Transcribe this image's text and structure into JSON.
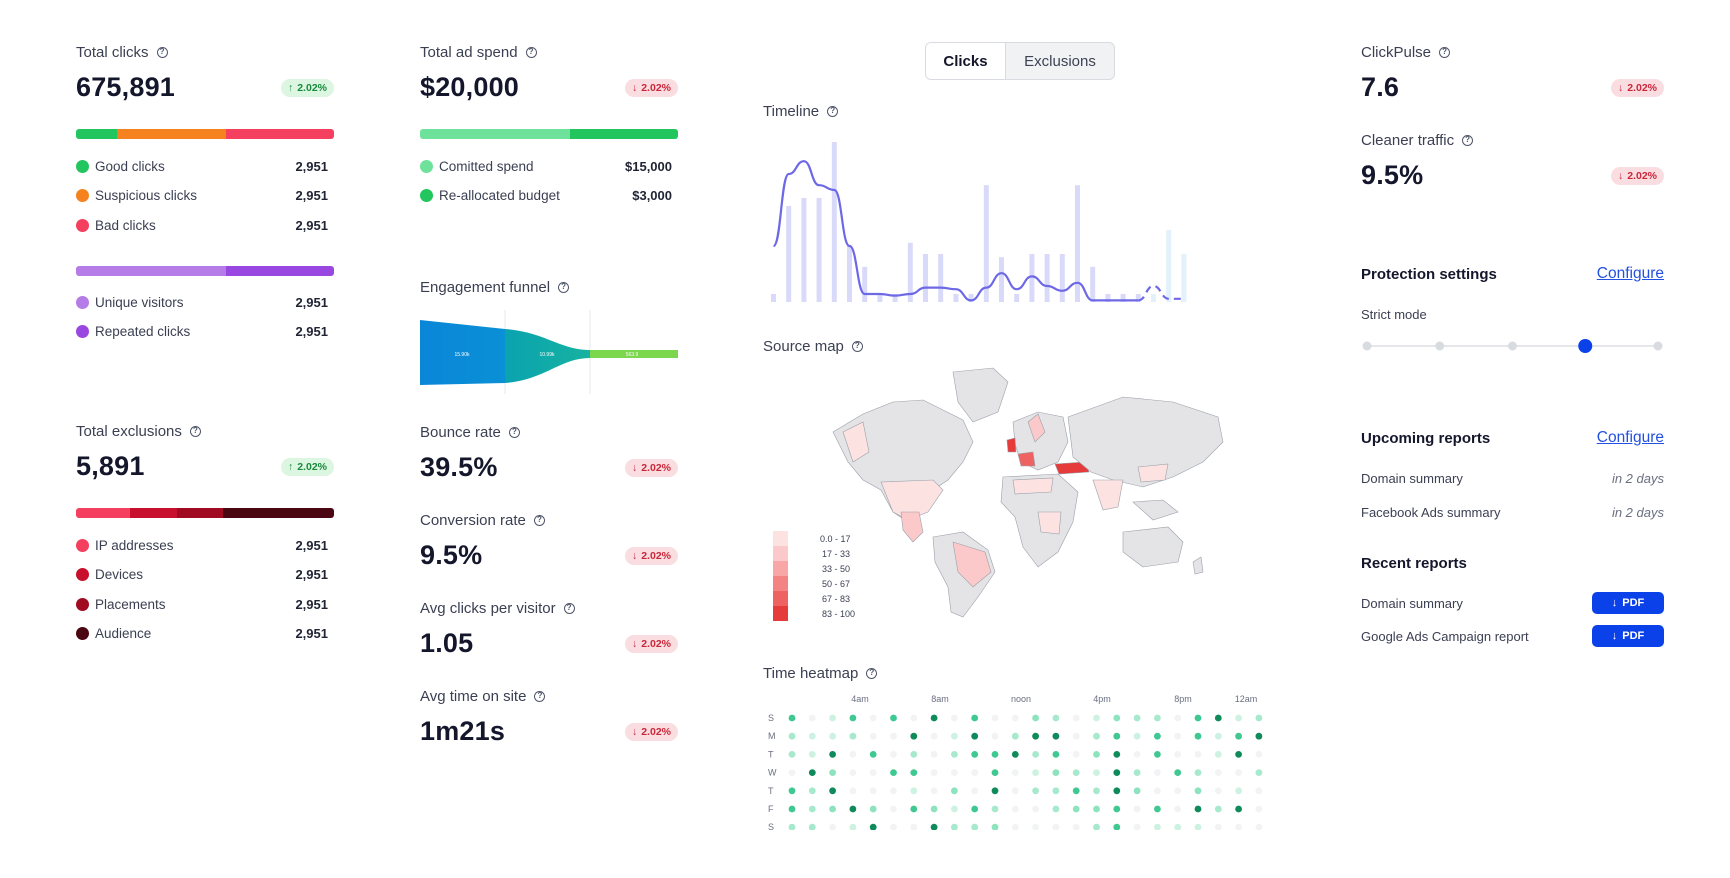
{
  "total_clicks": {
    "label": "Total clicks",
    "value": "675,891",
    "change": "2.02%",
    "direction": "up",
    "bar1": [
      {
        "color": "#22c55e",
        "frac": 0.16
      },
      {
        "color": "#f5821f",
        "frac": 0.42
      },
      {
        "color": "#f43f5e",
        "frac": 0.42
      }
    ],
    "items1": [
      {
        "label": "Good clicks",
        "value": "2,951",
        "color": "#22c55e"
      },
      {
        "label": "Suspicious clicks",
        "value": "2,951",
        "color": "#f5821f"
      },
      {
        "label": "Bad clicks",
        "value": "2,951",
        "color": "#f43f5e"
      }
    ],
    "bar2": [
      {
        "color": "#b57ce8",
        "frac": 0.58
      },
      {
        "color": "#9848e0",
        "frac": 0.42
      }
    ],
    "items2": [
      {
        "label": "Unique visitors",
        "value": "2,951",
        "color": "#b57ce8"
      },
      {
        "label": "Repeated clicks",
        "value": "2,951",
        "color": "#9848e0"
      }
    ]
  },
  "total_exclusions": {
    "label": "Total exclusions",
    "value": "5,891",
    "change": "2.02%",
    "direction": "up",
    "bar": [
      {
        "color": "#f43f5e",
        "frac": 0.21
      },
      {
        "color": "#c8102e",
        "frac": 0.18
      },
      {
        "color": "#a00b22",
        "frac": 0.18
      },
      {
        "color": "#4a0712",
        "frac": 0.43
      }
    ],
    "items": [
      {
        "label": "IP addresses",
        "value": "2,951",
        "color": "#f43f5e"
      },
      {
        "label": "Devices",
        "value": "2,951",
        "color": "#c8102e"
      },
      {
        "label": "Placements",
        "value": "2,951",
        "color": "#a00b22"
      },
      {
        "label": "Audience",
        "value": "2,951",
        "color": "#4a0712"
      }
    ]
  },
  "ad_spend": {
    "label": "Total ad spend",
    "value": "$20,000",
    "change": "2.02%",
    "direction": "down",
    "bar": [
      {
        "color": "#6ee29a",
        "frac": 0.58
      },
      {
        "color": "#22c55e",
        "frac": 0.42
      }
    ],
    "items": [
      {
        "label": "Comitted spend",
        "value": "$15,000",
        "color": "#6ee29a"
      },
      {
        "label": "Re-allocated budget",
        "value": "$3,000",
        "color": "#22c55e"
      }
    ]
  },
  "funnel": {
    "label": "Engagement funnel",
    "stages": [
      "15.90k",
      "10.99k",
      "563.9"
    ]
  },
  "metrics": [
    {
      "label": "Bounce rate",
      "value": "39.5%",
      "change": "2.02%"
    },
    {
      "label": "Conversion rate",
      "value": "9.5%",
      "change": "2.02%"
    },
    {
      "label": "Avg clicks per visitor",
      "value": "1.05",
      "change": "2.02%"
    },
    {
      "label": "Avg time on site",
      "value": "1m21s",
      "change": "2.02%"
    }
  ],
  "tabs": {
    "active": "Clicks",
    "other": "Exclusions"
  },
  "timeline": {
    "label": "Timeline",
    "bars": [
      5,
      60,
      65,
      65,
      100,
      35,
      22,
      5,
      5,
      37,
      30,
      30,
      5,
      5,
      73,
      28,
      5,
      30,
      30,
      30,
      73,
      22,
      5,
      5,
      5,
      5,
      45,
      30
    ],
    "line": [
      35,
      80,
      88,
      73,
      70,
      35,
      5,
      5,
      4,
      5,
      9,
      9,
      8,
      1,
      9,
      18,
      8,
      16,
      10,
      7,
      12,
      1,
      1,
      1,
      1,
      10,
      2,
      2
    ]
  },
  "map": {
    "label": "Source map",
    "legend": [
      {
        "range": "0.0 - 17",
        "color": "#fde2e2"
      },
      {
        "range": "17 - 33",
        "color": "#fbc9c9"
      },
      {
        "range": "33 - 50",
        "color": "#f8a6a6"
      },
      {
        "range": "50 - 67",
        "color": "#f48484"
      },
      {
        "range": "67 - 83",
        "color": "#ee6262"
      },
      {
        "range": "83 - 100",
        "color": "#e63b3b"
      }
    ]
  },
  "heatmap": {
    "label": "Time heatmap",
    "hours": [
      "4am",
      "8am",
      "noon",
      "4pm",
      "8pm",
      "12am"
    ],
    "days": [
      "S",
      "M",
      "T",
      "W",
      "T",
      "F",
      "S"
    ]
  },
  "clickpulse": {
    "label": "ClickPulse",
    "value": "7.6",
    "change": "2.02%"
  },
  "cleaner": {
    "label": "Cleaner traffic",
    "value": "9.5%",
    "change": "2.02%"
  },
  "protection": {
    "title": "Protection settings",
    "configure": "Configure",
    "mode": "Strict mode",
    "level": 3,
    "steps": 5
  },
  "upcoming": {
    "title": "Upcoming reports",
    "configure": "Configure",
    "items": [
      {
        "name": "Domain summary",
        "when": "in 2 days"
      },
      {
        "name": "Facebook Ads summary",
        "when": "in 2 days"
      }
    ]
  },
  "recent": {
    "title": "Recent reports",
    "button": "PDF",
    "items": [
      {
        "name": "Domain summary"
      },
      {
        "name": "Google Ads Campaign report"
      }
    ]
  }
}
